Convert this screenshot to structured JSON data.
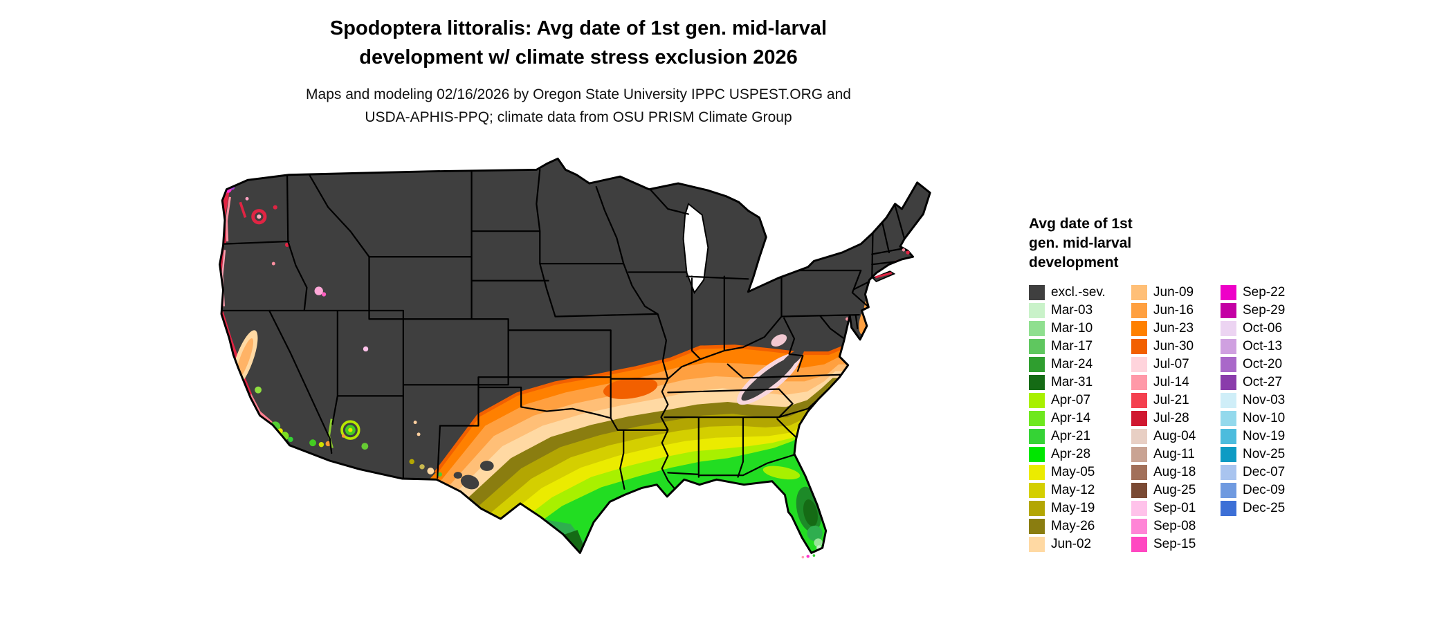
{
  "title": {
    "line1": "Spodoptera littoralis: Avg date of 1st gen. mid-larval",
    "line2": "development w/ climate stress exclusion 2026"
  },
  "subtitle": {
    "line1": "Maps and modeling 02/16/2026 by Oregon State University IPPC USPEST.ORG and",
    "line2": "USDA-APHIS-PPQ; climate data from OSU PRISM Climate Group"
  },
  "legend": {
    "title_lines": [
      "Avg date of 1st",
      "gen. mid-larval",
      "development"
    ],
    "columns": [
      {
        "items": [
          {
            "label": "excl.-sev.",
            "color": "#3f3f3f"
          },
          {
            "label": "Mar-03",
            "color": "#c9f2c9"
          },
          {
            "label": "Mar-10",
            "color": "#8fdf8f"
          },
          {
            "label": "Mar-17",
            "color": "#5fc75f"
          },
          {
            "label": "Mar-24",
            "color": "#2f9e2f"
          },
          {
            "label": "Mar-31",
            "color": "#156b15"
          },
          {
            "label": "Apr-07",
            "color": "#a8f000"
          },
          {
            "label": "Apr-14",
            "color": "#6ee81e"
          },
          {
            "label": "Apr-21",
            "color": "#35d335"
          },
          {
            "label": "Apr-28",
            "color": "#00e600"
          },
          {
            "label": "May-05",
            "color": "#ebeb00"
          },
          {
            "label": "May-12",
            "color": "#d4cf00"
          },
          {
            "label": "May-19",
            "color": "#b3a602"
          },
          {
            "label": "May-26",
            "color": "#8a7d10"
          },
          {
            "label": "Jun-02",
            "color": "#ffd9a3"
          }
        ]
      },
      {
        "items": [
          {
            "label": "Jun-09",
            "color": "#ffbf77"
          },
          {
            "label": "Jun-16",
            "color": "#ffa040"
          },
          {
            "label": "Jun-23",
            "color": "#ff8000"
          },
          {
            "label": "Jun-30",
            "color": "#f26000"
          },
          {
            "label": "Jul-07",
            "color": "#ffd4dc"
          },
          {
            "label": "Jul-14",
            "color": "#ff99a8"
          },
          {
            "label": "Jul-21",
            "color": "#f4404f"
          },
          {
            "label": "Jul-28",
            "color": "#d01830"
          },
          {
            "label": "Aug-04",
            "color": "#e8cfc4"
          },
          {
            "label": "Aug-11",
            "color": "#c9a393"
          },
          {
            "label": "Aug-18",
            "color": "#a2705a"
          },
          {
            "label": "Aug-25",
            "color": "#7a4a34"
          },
          {
            "label": "Sep-01",
            "color": "#ffc2ea"
          },
          {
            "label": "Sep-08",
            "color": "#ff85d6"
          },
          {
            "label": "Sep-15",
            "color": "#ff47c1"
          }
        ]
      },
      {
        "items": [
          {
            "label": "Sep-22",
            "color": "#ee00c8"
          },
          {
            "label": "Sep-29",
            "color": "#c400a4"
          },
          {
            "label": "Oct-06",
            "color": "#ecd4f2"
          },
          {
            "label": "Oct-13",
            "color": "#cfa0e0"
          },
          {
            "label": "Oct-20",
            "color": "#a968c9"
          },
          {
            "label": "Oct-27",
            "color": "#8a3cab"
          },
          {
            "label": "Nov-03",
            "color": "#cfeef8"
          },
          {
            "label": "Nov-10",
            "color": "#93d9ec"
          },
          {
            "label": "Nov-19",
            "color": "#4cbcdd"
          },
          {
            "label": "Nov-25",
            "color": "#0d9bc4"
          },
          {
            "label": "Dec-07",
            "color": "#a9c4ef"
          },
          {
            "label": "Dec-09",
            "color": "#6f9ae0"
          },
          {
            "label": "Dec-25",
            "color": "#3c6fd6"
          }
        ]
      }
    ]
  },
  "map": {
    "region": "Contiguous United States",
    "excluded_label": "excl.-sev.",
    "excluded_color": "#3f3f3f",
    "outline_color": "#000000",
    "water_color": "#ffffff",
    "band_top_color": "#f26000",
    "band_colors": [
      "#ff8000",
      "#ffa040",
      "#ffbf77",
      "#ffd9a3",
      "#8a7d10",
      "#b3a602",
      "#d4cf00",
      "#ebeb00",
      "#a8f000",
      "#22dd22"
    ]
  },
  "chart_data": {
    "type": "choropleth_map",
    "title": "Spodoptera littoralis: Avg date of 1st gen. mid-larval development w/ climate stress exclusion 2026",
    "subtitle": "Maps and modeling 02/16/2026 by Oregon State University IPPC USPEST.ORG and USDA-APHIS-PPQ; climate data from OSU PRISM Climate Group",
    "legend_title": "Avg date of 1st gen. mid-larval development",
    "classes": [
      "excl.-sev.",
      "Mar-03",
      "Mar-10",
      "Mar-17",
      "Mar-24",
      "Mar-31",
      "Apr-07",
      "Apr-14",
      "Apr-21",
      "Apr-28",
      "May-05",
      "May-12",
      "May-19",
      "May-26",
      "Jun-02",
      "Jun-09",
      "Jun-16",
      "Jun-23",
      "Jun-30",
      "Jul-07",
      "Jul-14",
      "Jul-21",
      "Jul-28",
      "Aug-04",
      "Aug-11",
      "Aug-18",
      "Aug-25",
      "Sep-01",
      "Sep-08",
      "Sep-15",
      "Sep-22",
      "Sep-29",
      "Oct-06",
      "Oct-13",
      "Oct-20",
      "Oct-27",
      "Nov-03",
      "Nov-10",
      "Nov-19",
      "Nov-25",
      "Dec-07",
      "Dec-09",
      "Dec-25"
    ],
    "region_summary": [
      {
        "region": "Northern, midwestern and mountain US (most of the map)",
        "value": "excl.-sev."
      },
      {
        "region": "Kentucky / Tennessee / Virginia / northern Oklahoma fringe",
        "value": "Jun-16 to Jun-30"
      },
      {
        "region": "Arkansas, Missouri bootheel, northern MS/AL/GA, Texas panhandle",
        "value": "Jun-02 to Jun-16"
      },
      {
        "region": "Central belt of Gulf states and central Texas",
        "value": "May-05 to May-26"
      },
      {
        "region": "Gulf Coast, southern Louisiana, south Texas, north Florida",
        "value": "Apr-07 to Apr-28"
      },
      {
        "region": "South Texas tip and central/south Florida",
        "value": "Mar-03 to Mar-31"
      },
      {
        "region": "Washington / Oregon / N. California coast",
        "value": "Jul-14 to Jul-28 with Sep-Oct patches at NW tip"
      },
      {
        "region": "California Central Valley",
        "value": "Jun-02 to Jun-16"
      },
      {
        "region": "Southern California, SW Arizona, southern New Mexico",
        "value": "Apr to May patches"
      }
    ]
  }
}
